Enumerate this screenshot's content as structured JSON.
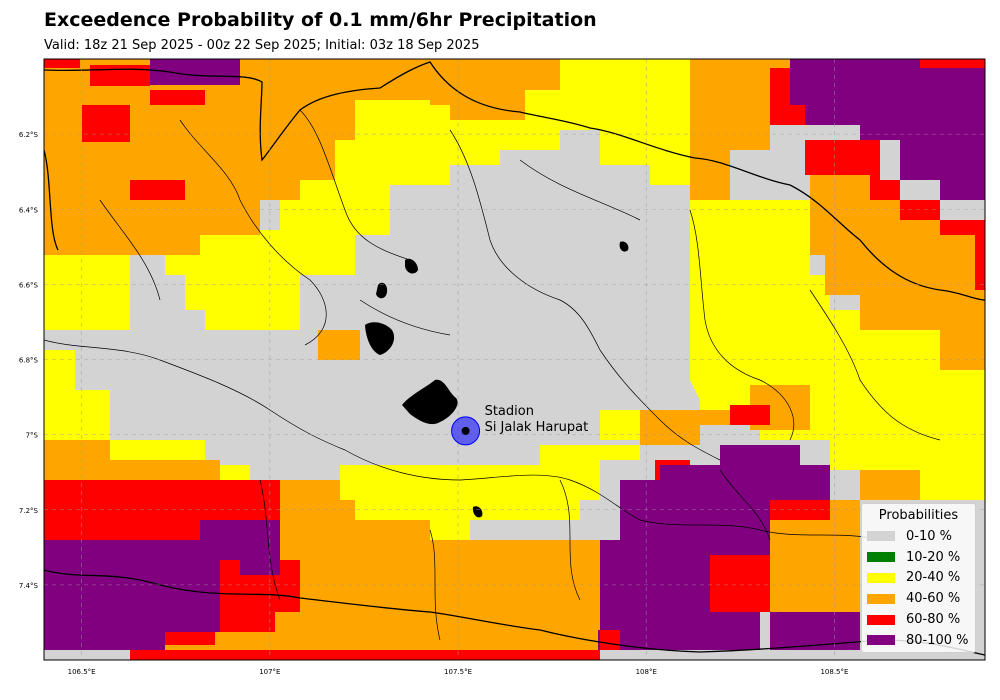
{
  "title": "Exceedence Probability of 0.1 mm/6hr Precipitation",
  "subtitle": "Valid: 18z 21 Sep 2025 - 00z 22 Sep 2025; Initial: 03z 18 Sep 2025",
  "station": {
    "name": "Stadion Si Jalak Harupat",
    "name_line1": "Stadion",
    "name_line2": "Si Jalak Harupat",
    "lon": 107.52,
    "lat": -6.99,
    "marker_color": "#0000ff"
  },
  "map": {
    "lon_range": [
      106.4,
      108.9
    ],
    "lat_range": [
      -7.6,
      -6.0
    ],
    "gridlines": true,
    "lon_ticks": [
      {
        "value": 106.5,
        "label": "106.5°E"
      },
      {
        "value": 107.0,
        "label": "107°E"
      },
      {
        "value": 107.5,
        "label": "107.5°E"
      },
      {
        "value": 108.0,
        "label": "108°E"
      },
      {
        "value": 108.5,
        "label": "108.5°E"
      }
    ],
    "lat_ticks": [
      {
        "value": -6.2,
        "label": "6.2°S"
      },
      {
        "value": -6.4,
        "label": "6.4°S"
      },
      {
        "value": -6.6,
        "label": "6.6°S"
      },
      {
        "value": -6.8,
        "label": "6.8°S"
      },
      {
        "value": -7.0,
        "label": "7°S"
      },
      {
        "value": -7.2,
        "label": "7.2°S"
      },
      {
        "value": -7.4,
        "label": "7.4°S"
      }
    ]
  },
  "legend": {
    "title": "Probabilities",
    "placement": "lower-right",
    "items": [
      {
        "label": "0-10 %",
        "color": "#d3d3d3"
      },
      {
        "label": "10-20 %",
        "color": "#008000"
      },
      {
        "label": "20-40 %",
        "color": "#ffff00"
      },
      {
        "label": "40-60 %",
        "color": "#ffa500"
      },
      {
        "label": "60-80 %",
        "color": "#ff0000"
      },
      {
        "label": "80-100 %",
        "color": "#800080"
      }
    ]
  }
}
